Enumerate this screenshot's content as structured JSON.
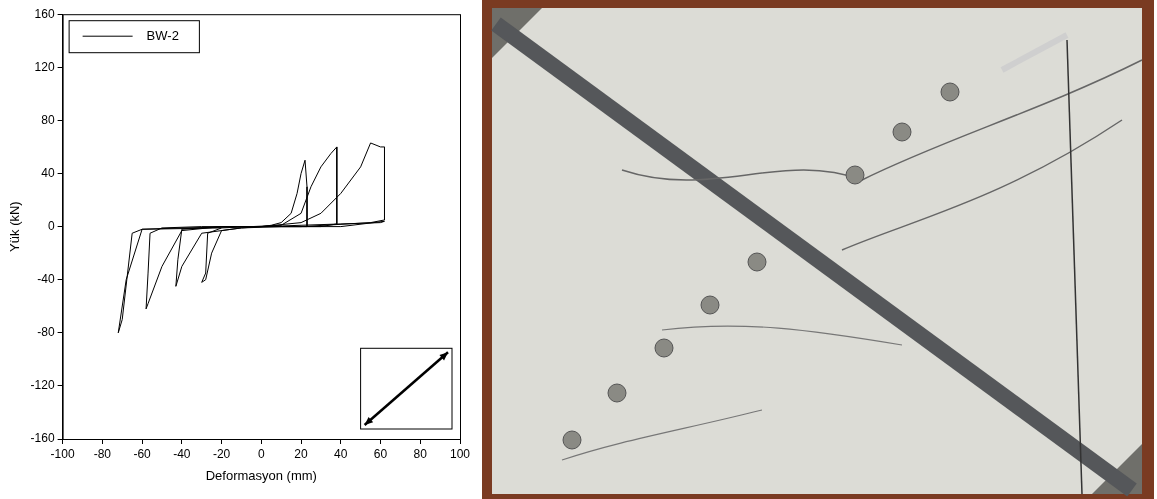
{
  "chart_data": {
    "type": "line",
    "x_label": "Deformasyon (mm)",
    "y_label": "Yük (kN)",
    "xlim": [
      -100,
      100
    ],
    "xticks": [
      -100,
      -80,
      -60,
      -40,
      -20,
      0,
      20,
      40,
      60,
      80,
      100
    ],
    "ylim": [
      -160,
      160
    ],
    "yticks": [
      -160,
      -120,
      -80,
      -40,
      0,
      40,
      80,
      120,
      160
    ],
    "grid": false,
    "legend": "upper left",
    "x": [
      0,
      5,
      10,
      15,
      18,
      20,
      22,
      23,
      23,
      15,
      0,
      -10,
      -20,
      -25,
      -28,
      -30,
      -28,
      -27,
      -20,
      -5,
      10,
      20,
      25,
      30,
      35,
      38,
      38,
      30,
      10,
      -10,
      -30,
      -40,
      -43,
      -42,
      -40,
      -20,
      0,
      20,
      30,
      40,
      50,
      55,
      60,
      62,
      62,
      55,
      20,
      -20,
      -40,
      -50,
      -57,
      -58,
      -57,
      -56,
      -50,
      -30,
      0,
      20,
      40,
      60,
      62,
      40,
      0,
      -40,
      -60,
      -68,
      -72,
      -70,
      -65,
      -60,
      -20
    ],
    "series": [
      {
        "name": "BW-2",
        "color": "#000000",
        "values": [
          0,
          1,
          3,
          10,
          25,
          40,
          50,
          30,
          0,
          0,
          0,
          -1,
          -3,
          -20,
          -40,
          -42,
          -35,
          -5,
          -1,
          0,
          1,
          10,
          30,
          45,
          55,
          60,
          2,
          0,
          0,
          -1,
          -5,
          -30,
          -45,
          -25,
          -2,
          0,
          0,
          3,
          10,
          25,
          45,
          63,
          60,
          60,
          5,
          3,
          0,
          0,
          -3,
          -30,
          -58,
          -62,
          -35,
          -5,
          -1,
          0,
          0,
          1,
          2,
          3,
          4,
          0,
          0,
          -1,
          -2,
          -40,
          -80,
          -70,
          -5,
          -2,
          -1
        ]
      }
    ]
  }
}
